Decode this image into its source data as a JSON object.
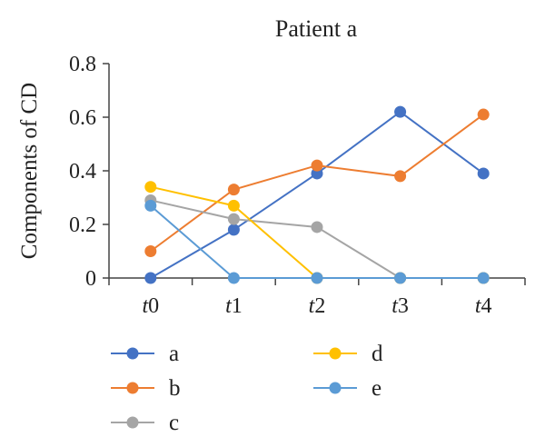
{
  "chart_data": {
    "type": "line",
    "title": "Patient a",
    "xlabel": "",
    "ylabel": "Components of CD",
    "x": [
      "t0",
      "t1",
      "t2",
      "t3",
      "t4"
    ],
    "ylim": [
      0,
      0.8
    ],
    "yticks": [
      "0",
      "0.2",
      "0.4",
      "0.6",
      "0.8"
    ],
    "grid": false,
    "legend_position": "bottom",
    "series": [
      {
        "name": "a",
        "color": "#4472C4",
        "values": [
          0,
          0.18,
          0.39,
          0.62,
          0.39
        ]
      },
      {
        "name": "b",
        "color": "#ED7D31",
        "values": [
          0.1,
          0.33,
          0.42,
          0.38,
          0.61
        ]
      },
      {
        "name": "c",
        "color": "#A5A5A5",
        "values": [
          0.29,
          0.22,
          0.19,
          0,
          0
        ]
      },
      {
        "name": "d",
        "color": "#FFC000",
        "values": [
          0.34,
          0.27,
          0,
          0,
          0
        ]
      },
      {
        "name": "e",
        "color": "#5B9BD5",
        "values": [
          0.27,
          0,
          0,
          0,
          0
        ]
      }
    ]
  }
}
